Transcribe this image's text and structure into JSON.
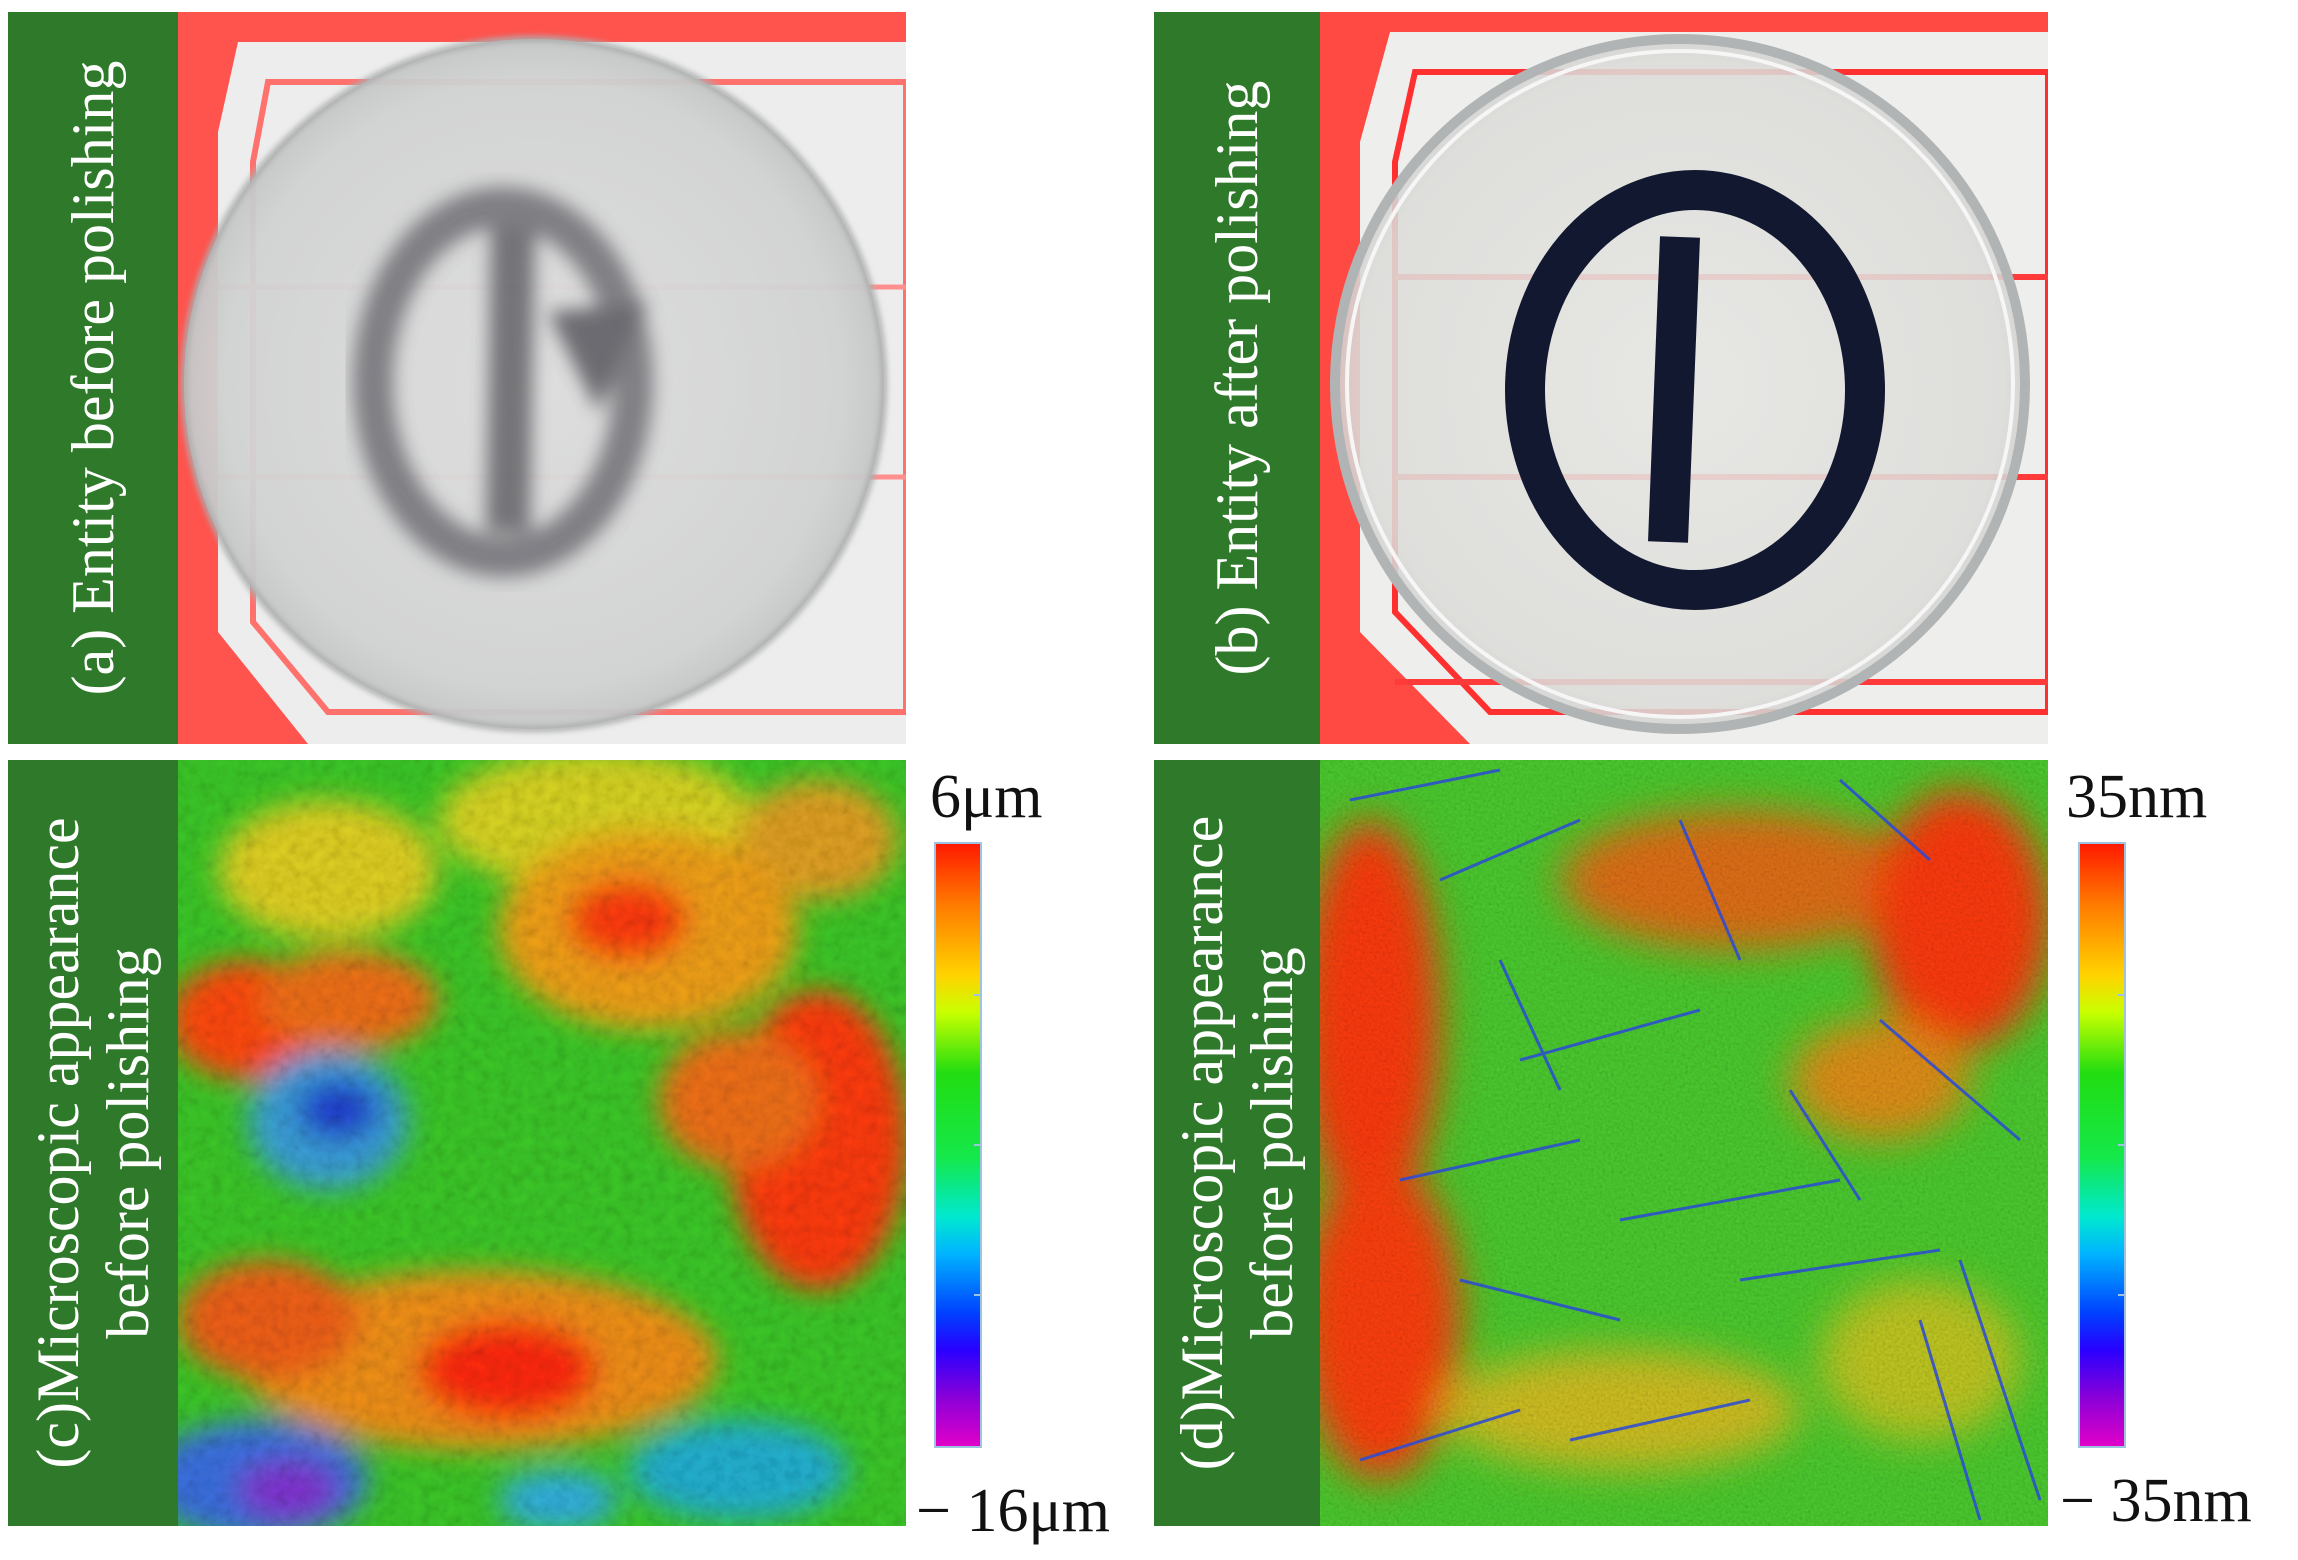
{
  "panels": {
    "a": {
      "label": "(a) Entity before polishing"
    },
    "b": {
      "label": "(b) Entity after polishing"
    },
    "c": {
      "label_line1": "(c)Microscopic appearance",
      "label_line2": "before polishing",
      "scale_max": "6μm",
      "scale_min": "− 16μm"
    },
    "d": {
      "label_line1": "(d)Microscopic appearance",
      "label_line2": "before polishing",
      "scale_max": "35nm",
      "scale_min": "− 35nm"
    }
  },
  "colors": {
    "label_bg": "#2f7a2a",
    "card_red": "#ff3b3b",
    "colorbar_top": "#ff1a00",
    "colorbar_bottom": "#e000c8"
  }
}
